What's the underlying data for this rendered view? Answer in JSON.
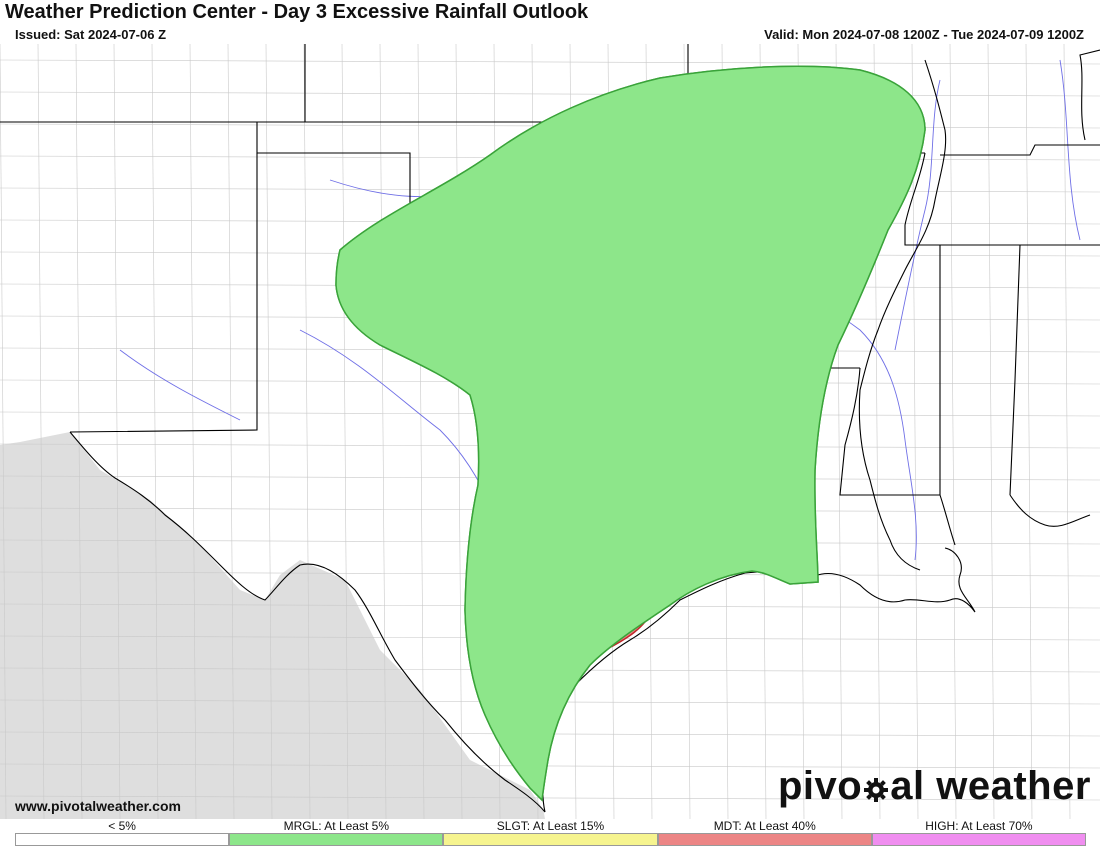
{
  "header": {
    "title": "Weather Prediction Center - Day 3 Excessive Rainfall Outlook",
    "issued": "Issued: Sat 2024-07-06 Z",
    "valid": "Valid: Mon 2024-07-08 1200Z - Tue 2024-07-09 1200Z"
  },
  "footer": {
    "website": "www.pivotalweather.com",
    "brand_before": "pivo",
    "brand_after": "al weather"
  },
  "legend": [
    {
      "label": "< 5%",
      "color": "#ffffff"
    },
    {
      "label": "MRGL: At Least 5%",
      "color": "#8de68a"
    },
    {
      "label": "SLGT: At Least 15%",
      "color": "#f6f48f"
    },
    {
      "label": "MDT: At Least 40%",
      "color": "#ec8585"
    },
    {
      "label": "HIGH: At Least 70%",
      "color": "#f08ef0"
    }
  ],
  "map": {
    "mexico_color": "#dedede",
    "gulf_color": "#ffffff",
    "state_border_color": "#000000",
    "river_color": "#6f6fe6",
    "mrgl_outline": "#3aa33a",
    "slgt_outline": "#e8a040",
    "mdt_outline": "#c0282a"
  }
}
